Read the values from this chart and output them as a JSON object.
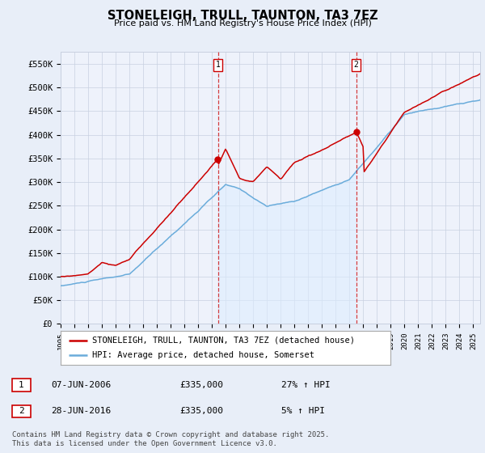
{
  "title": "STONELEIGH, TRULL, TAUNTON, TA3 7EZ",
  "subtitle": "Price paid vs. HM Land Registry's House Price Index (HPI)",
  "ylabel_ticks": [
    "£0",
    "£50K",
    "£100K",
    "£150K",
    "£200K",
    "£250K",
    "£300K",
    "£350K",
    "£400K",
    "£450K",
    "£500K",
    "£550K"
  ],
  "ytick_values": [
    0,
    50000,
    100000,
    150000,
    200000,
    250000,
    300000,
    350000,
    400000,
    450000,
    500000,
    550000
  ],
  "ylim": [
    0,
    575000
  ],
  "xlim_start": 1995.0,
  "xlim_end": 2025.5,
  "xtick_years": [
    1995,
    1996,
    1997,
    1998,
    1999,
    2000,
    2001,
    2002,
    2003,
    2004,
    2005,
    2006,
    2007,
    2008,
    2009,
    2010,
    2011,
    2012,
    2013,
    2014,
    2015,
    2016,
    2017,
    2018,
    2019,
    2020,
    2021,
    2022,
    2023,
    2024,
    2025
  ],
  "vline1_x": 2006.44,
  "vline2_x": 2016.49,
  "sale1_date": "07-JUN-2006",
  "sale1_price": "£335,000",
  "sale1_hpi": "27% ↑ HPI",
  "sale2_date": "28-JUN-2016",
  "sale2_price": "£335,000",
  "sale2_hpi": "5% ↑ HPI",
  "legend1_label": "STONELEIGH, TRULL, TAUNTON, TA3 7EZ (detached house)",
  "legend2_label": "HPI: Average price, detached house, Somerset",
  "footer": "Contains HM Land Registry data © Crown copyright and database right 2025.\nThis data is licensed under the Open Government Licence v3.0.",
  "red_color": "#cc0000",
  "blue_line_color": "#6aacdb",
  "blue_fill_color": "#ddeeff",
  "background_color": "#e8eef8",
  "plot_bg_color": "#eef2fb",
  "grid_color": "#c8d0e0"
}
